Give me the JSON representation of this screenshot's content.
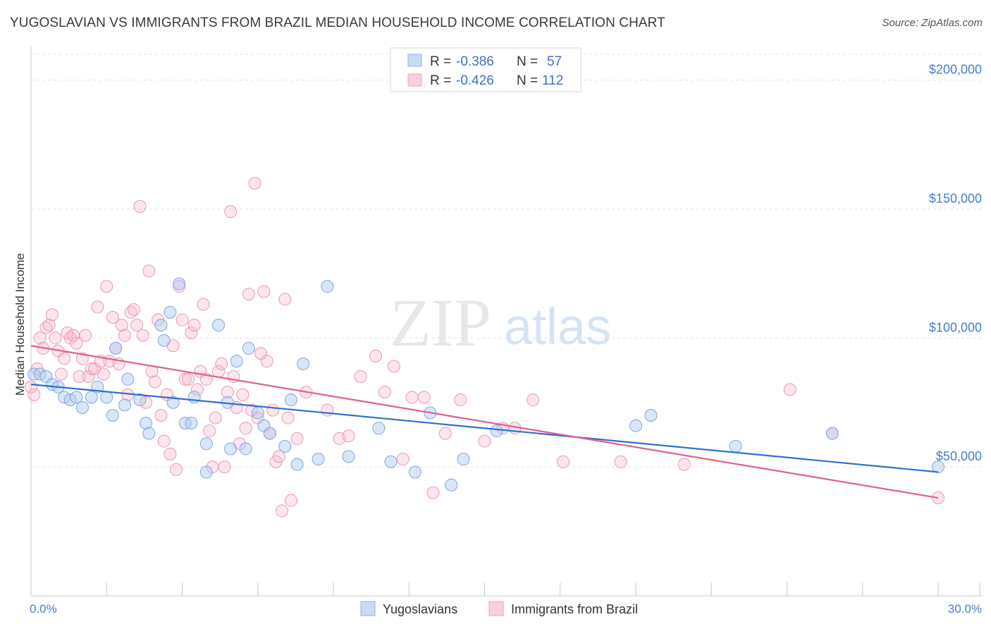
{
  "header": {
    "title": "YUGOSLAVIAN VS IMMIGRANTS FROM BRAZIL MEDIAN HOUSEHOLD INCOME CORRELATION CHART",
    "source": "Source: ZipAtlas.com"
  },
  "watermark": {
    "zip": "ZIP",
    "atlas": "atlas"
  },
  "legend": {
    "r_label": "R =",
    "n_label": "N =",
    "rows": [
      {
        "r": "-0.386",
        "n": "57",
        "color": "#aac8f0"
      },
      {
        "r": "-0.426",
        "n": "112",
        "color": "#f5b8cc"
      }
    ]
  },
  "chart_data": {
    "type": "scatter",
    "title": "YUGOSLAVIAN VS IMMIGRANTS FROM BRAZIL MEDIAN HOUSEHOLD INCOME CORRELATION CHART",
    "xlabel": "",
    "ylabel": "Median Household Income",
    "xlim": [
      0,
      30
    ],
    "ylim": [
      0,
      210000
    ],
    "x_tick_labels": [
      "0.0%",
      "30.0%"
    ],
    "y_ticks": [
      50000,
      100000,
      150000,
      200000
    ],
    "y_tick_labels": [
      "$50,000",
      "$100,000",
      "$150,000",
      "$200,000"
    ],
    "grid": "dashed horizontal",
    "legend_position": "top-center",
    "series": [
      {
        "name": "Yugoslavians",
        "color": "#aac8f0",
        "line_color": "#2f6fd1",
        "trend": {
          "x": [
            0,
            30
          ],
          "y": [
            82000,
            48000
          ]
        },
        "points": [
          [
            0.1,
            86000
          ],
          [
            0.3,
            86000
          ],
          [
            0.5,
            85000
          ],
          [
            0.7,
            82000
          ],
          [
            0.9,
            81000
          ],
          [
            1.1,
            77000
          ],
          [
            1.3,
            76000
          ],
          [
            1.5,
            77000
          ],
          [
            1.7,
            73000
          ],
          [
            2.0,
            77000
          ],
          [
            2.2,
            81000
          ],
          [
            2.5,
            77000
          ],
          [
            2.7,
            70000
          ],
          [
            2.8,
            96000
          ],
          [
            3.1,
            74000
          ],
          [
            3.2,
            84000
          ],
          [
            3.6,
            76000
          ],
          [
            3.8,
            67000
          ],
          [
            3.9,
            63000
          ],
          [
            4.3,
            105000
          ],
          [
            4.4,
            99000
          ],
          [
            4.6,
            110000
          ],
          [
            4.7,
            75000
          ],
          [
            4.9,
            121000
          ],
          [
            5.1,
            67000
          ],
          [
            5.3,
            67000
          ],
          [
            5.4,
            77000
          ],
          [
            5.8,
            59000
          ],
          [
            5.8,
            48000
          ],
          [
            6.2,
            105000
          ],
          [
            6.5,
            75000
          ],
          [
            6.6,
            57000
          ],
          [
            6.8,
            91000
          ],
          [
            7.1,
            57000
          ],
          [
            7.2,
            96000
          ],
          [
            7.5,
            71000
          ],
          [
            7.7,
            66000
          ],
          [
            7.9,
            63000
          ],
          [
            8.4,
            58000
          ],
          [
            8.6,
            76000
          ],
          [
            8.8,
            51000
          ],
          [
            9.0,
            90000
          ],
          [
            9.5,
            53000
          ],
          [
            9.8,
            120000
          ],
          [
            10.5,
            54000
          ],
          [
            11.5,
            65000
          ],
          [
            11.9,
            52000
          ],
          [
            12.7,
            48000
          ],
          [
            13.2,
            71000
          ],
          [
            13.9,
            43000
          ],
          [
            14.3,
            53000
          ],
          [
            15.4,
            64000
          ],
          [
            20.0,
            66000
          ],
          [
            20.5,
            70000
          ],
          [
            23.3,
            58000
          ],
          [
            26.5,
            63000
          ],
          [
            30.0,
            50000
          ]
        ]
      },
      {
        "name": "Immigrants from Brazil",
        "color": "#f5b8cc",
        "line_color": "#e0608e",
        "trend": {
          "x": [
            0,
            30
          ],
          "y": [
            97000,
            38000
          ]
        },
        "points": [
          [
            0.0,
            81000
          ],
          [
            0.1,
            78000
          ],
          [
            0.2,
            88000
          ],
          [
            0.3,
            100000
          ],
          [
            0.4,
            96000
          ],
          [
            0.5,
            104000
          ],
          [
            0.6,
            105000
          ],
          [
            0.7,
            109000
          ],
          [
            0.8,
            100000
          ],
          [
            0.9,
            95000
          ],
          [
            1.0,
            86000
          ],
          [
            1.1,
            92000
          ],
          [
            1.2,
            102000
          ],
          [
            1.3,
            100000
          ],
          [
            1.4,
            101000
          ],
          [
            1.5,
            98000
          ],
          [
            1.6,
            85000
          ],
          [
            1.7,
            92000
          ],
          [
            1.8,
            101000
          ],
          [
            1.9,
            85000
          ],
          [
            2.0,
            88000
          ],
          [
            2.1,
            88000
          ],
          [
            2.2,
            112000
          ],
          [
            2.3,
            91000
          ],
          [
            2.4,
            86000
          ],
          [
            2.5,
            120000
          ],
          [
            2.6,
            91000
          ],
          [
            2.7,
            108000
          ],
          [
            2.8,
            96000
          ],
          [
            2.9,
            90000
          ],
          [
            3.0,
            105000
          ],
          [
            3.1,
            101000
          ],
          [
            3.2,
            78000
          ],
          [
            3.3,
            110000
          ],
          [
            3.4,
            111000
          ],
          [
            3.5,
            105000
          ],
          [
            3.6,
            151000
          ],
          [
            3.7,
            101000
          ],
          [
            3.8,
            75000
          ],
          [
            3.9,
            126000
          ],
          [
            4.0,
            87000
          ],
          [
            4.1,
            83000
          ],
          [
            4.2,
            107000
          ],
          [
            4.3,
            70000
          ],
          [
            4.4,
            60000
          ],
          [
            4.5,
            78000
          ],
          [
            4.6,
            55000
          ],
          [
            4.7,
            97000
          ],
          [
            4.8,
            49000
          ],
          [
            4.9,
            120000
          ],
          [
            5.0,
            107000
          ],
          [
            5.1,
            84000
          ],
          [
            5.2,
            84000
          ],
          [
            5.3,
            102000
          ],
          [
            5.4,
            105000
          ],
          [
            5.5,
            80000
          ],
          [
            5.6,
            87000
          ],
          [
            5.7,
            113000
          ],
          [
            5.8,
            84000
          ],
          [
            5.9,
            64000
          ],
          [
            6.0,
            50000
          ],
          [
            6.1,
            69000
          ],
          [
            6.2,
            87000
          ],
          [
            6.3,
            90000
          ],
          [
            6.4,
            50000
          ],
          [
            6.5,
            79000
          ],
          [
            6.6,
            149000
          ],
          [
            6.7,
            85000
          ],
          [
            6.8,
            73000
          ],
          [
            6.9,
            59000
          ],
          [
            7.0,
            78000
          ],
          [
            7.1,
            65000
          ],
          [
            7.2,
            117000
          ],
          [
            7.3,
            72000
          ],
          [
            7.4,
            160000
          ],
          [
            7.5,
            69000
          ],
          [
            7.6,
            94000
          ],
          [
            7.7,
            118000
          ],
          [
            7.8,
            91000
          ],
          [
            7.9,
            63000
          ],
          [
            8.0,
            72000
          ],
          [
            8.1,
            52000
          ],
          [
            8.2,
            54000
          ],
          [
            8.3,
            33000
          ],
          [
            8.4,
            115000
          ],
          [
            8.5,
            69000
          ],
          [
            8.6,
            37000
          ],
          [
            8.8,
            61000
          ],
          [
            9.1,
            79000
          ],
          [
            9.8,
            72000
          ],
          [
            10.2,
            61000
          ],
          [
            10.5,
            62000
          ],
          [
            10.9,
            85000
          ],
          [
            11.4,
            93000
          ],
          [
            11.7,
            79000
          ],
          [
            12.0,
            89000
          ],
          [
            12.3,
            53000
          ],
          [
            12.6,
            77000
          ],
          [
            13.0,
            77000
          ],
          [
            13.3,
            40000
          ],
          [
            13.7,
            63000
          ],
          [
            14.2,
            76000
          ],
          [
            15.0,
            60000
          ],
          [
            15.6,
            65000
          ],
          [
            16.0,
            65000
          ],
          [
            16.6,
            76000
          ],
          [
            17.6,
            52000
          ],
          [
            19.5,
            52000
          ],
          [
            21.6,
            51000
          ],
          [
            25.1,
            80000
          ],
          [
            26.5,
            63000
          ],
          [
            30.0,
            38000
          ]
        ]
      }
    ]
  }
}
